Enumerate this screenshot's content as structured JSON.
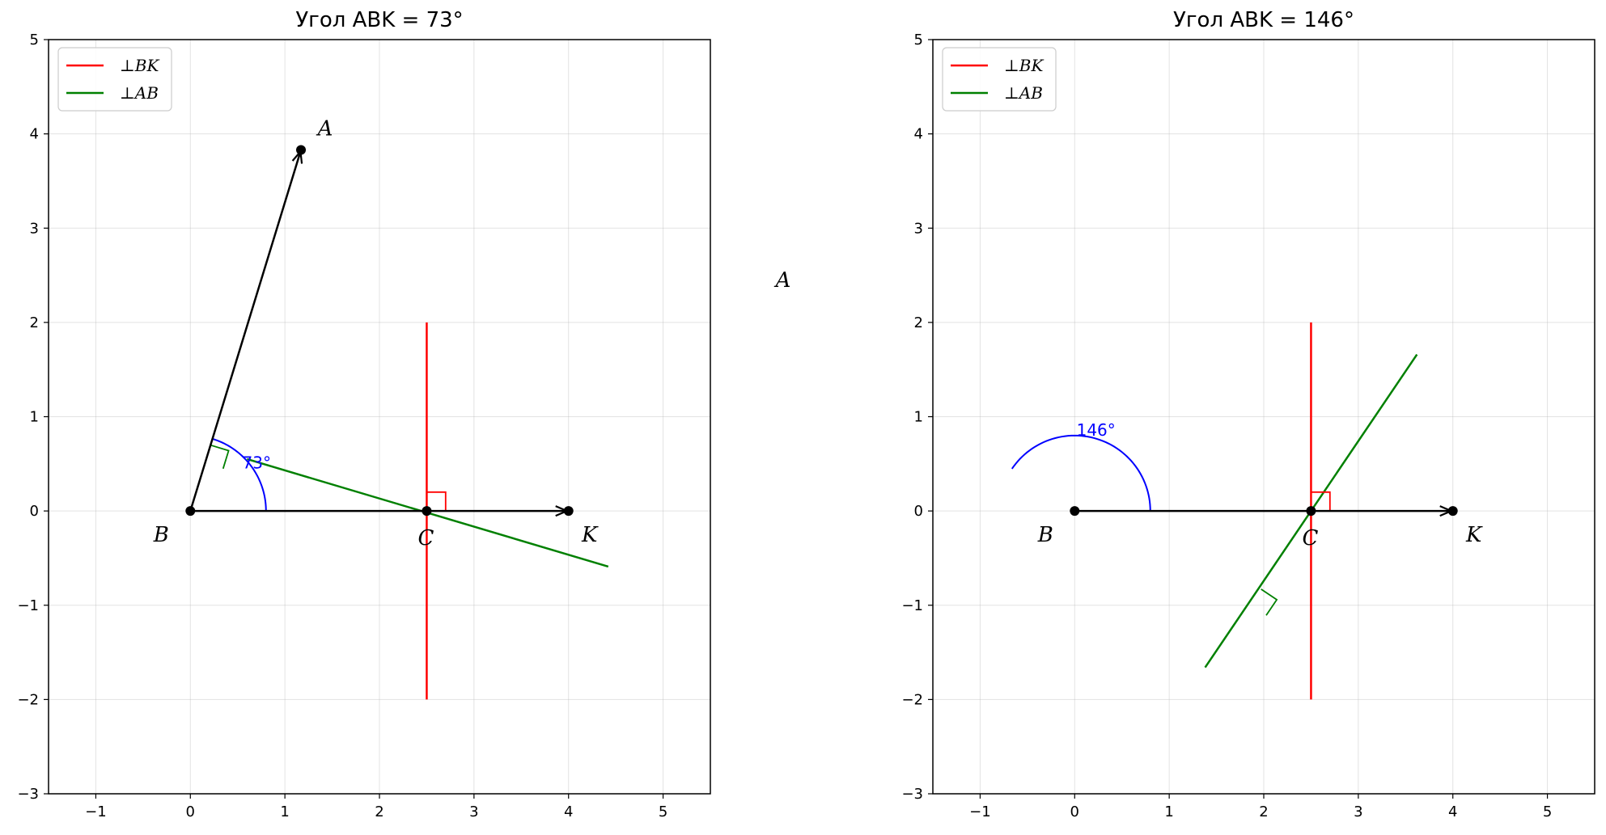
{
  "figure": {
    "stray_label": "A"
  },
  "chart_data": [
    {
      "type": "line",
      "title": "Угол ABK = 73°",
      "xlabel": "",
      "ylabel": "",
      "xlim": [
        -1.5,
        5.5
      ],
      "ylim": [
        -3,
        5
      ],
      "xticks": [
        -1,
        0,
        1,
        2,
        3,
        4,
        5
      ],
      "yticks": [
        -3,
        -2,
        -1,
        0,
        1,
        2,
        3,
        4,
        5
      ],
      "xtick_labels": [
        "−1",
        "0",
        "1",
        "2",
        "3",
        "4",
        "5"
      ],
      "ytick_labels": [
        "−3",
        "−2",
        "−1",
        "0",
        "1",
        "2",
        "3",
        "4",
        "5"
      ],
      "grid": true,
      "legend_position": "top-left",
      "legend": [
        {
          "label": "⊥BK",
          "color": "#ff0000"
        },
        {
          "label": "⊥AB",
          "color": "#008000"
        }
      ],
      "points": [
        {
          "name": "A",
          "x": 1.17,
          "y": 3.83
        },
        {
          "name": "B",
          "x": 0,
          "y": 0
        },
        {
          "name": "K",
          "x": 4,
          "y": 0
        },
        {
          "name": "C",
          "x": 2.5,
          "y": 0
        }
      ],
      "rays": [
        {
          "from": "B",
          "to": "A",
          "color": "#000000"
        },
        {
          "from": "B",
          "to": "K",
          "color": "#000000"
        }
      ],
      "series": [
        {
          "name": "⊥BK",
          "color": "#ff0000",
          "x": [
            2.5,
            2.5
          ],
          "y": [
            -2,
            2
          ]
        },
        {
          "name": "⊥AB",
          "color": "#008000",
          "x": [
            0.6,
            4.42
          ],
          "y": [
            0.55,
            -0.59
          ]
        }
      ],
      "angle_arc": {
        "center": "B",
        "radius": 0.8,
        "start_deg": 0,
        "end_deg": 73,
        "label": "73°",
        "label_x": 0.55,
        "label_y": 0.45,
        "color": "#0000ff"
      },
      "right_angle_markers": [
        {
          "x": 2.5,
          "y": 0,
          "dir1_deg": 0,
          "dir2_deg": 90,
          "size": 0.2,
          "color": "#ff0000"
        },
        {
          "x": 0.155,
          "y": 0.507,
          "dir1_deg": 73,
          "dir2_deg": -17,
          "size": 0.2,
          "color": "#008000"
        }
      ]
    },
    {
      "type": "line",
      "title": "Угол ABK = 146°",
      "xlabel": "",
      "ylabel": "",
      "xlim": [
        -1.5,
        5.5
      ],
      "ylim": [
        -3,
        5
      ],
      "xticks": [
        -1,
        0,
        1,
        2,
        3,
        4,
        5
      ],
      "yticks": [
        -3,
        -2,
        -1,
        0,
        1,
        2,
        3,
        4,
        5
      ],
      "xtick_labels": [
        "−1",
        "0",
        "1",
        "2",
        "3",
        "4",
        "5"
      ],
      "ytick_labels": [
        "−3",
        "−2",
        "−1",
        "0",
        "1",
        "2",
        "3",
        "4",
        "5"
      ],
      "grid": true,
      "legend_position": "top-left",
      "legend": [
        {
          "label": "⊥BK",
          "color": "#ff0000"
        },
        {
          "label": "⊥AB",
          "color": "#008000"
        }
      ],
      "points": [
        {
          "name": "B",
          "x": 0,
          "y": 0
        },
        {
          "name": "K",
          "x": 4,
          "y": 0
        },
        {
          "name": "C",
          "x": 2.5,
          "y": 0
        }
      ],
      "rays": [
        {
          "from": "B",
          "to": "K",
          "color": "#000000"
        }
      ],
      "series": [
        {
          "name": "⊥BK",
          "color": "#ff0000",
          "x": [
            2.5,
            2.5
          ],
          "y": [
            -2,
            2
          ]
        },
        {
          "name": "⊥AB",
          "color": "#008000",
          "x": [
            1.38,
            3.62
          ],
          "y": [
            -1.66,
            1.66
          ]
        }
      ],
      "angle_arc": {
        "center": "B",
        "radius": 0.8,
        "start_deg": 0,
        "end_deg": 146,
        "label": "146°",
        "label_x": 0.02,
        "label_y": 0.8,
        "color": "#0000ff"
      },
      "right_angle_markers": [
        {
          "x": 2.5,
          "y": 0,
          "dir1_deg": 0,
          "dir2_deg": 90,
          "size": 0.2,
          "color": "#ff0000"
        },
        {
          "x": 1.86,
          "y": -0.995,
          "dir1_deg": 56,
          "dir2_deg": -34,
          "size": 0.2,
          "color": "#008000"
        }
      ]
    }
  ]
}
